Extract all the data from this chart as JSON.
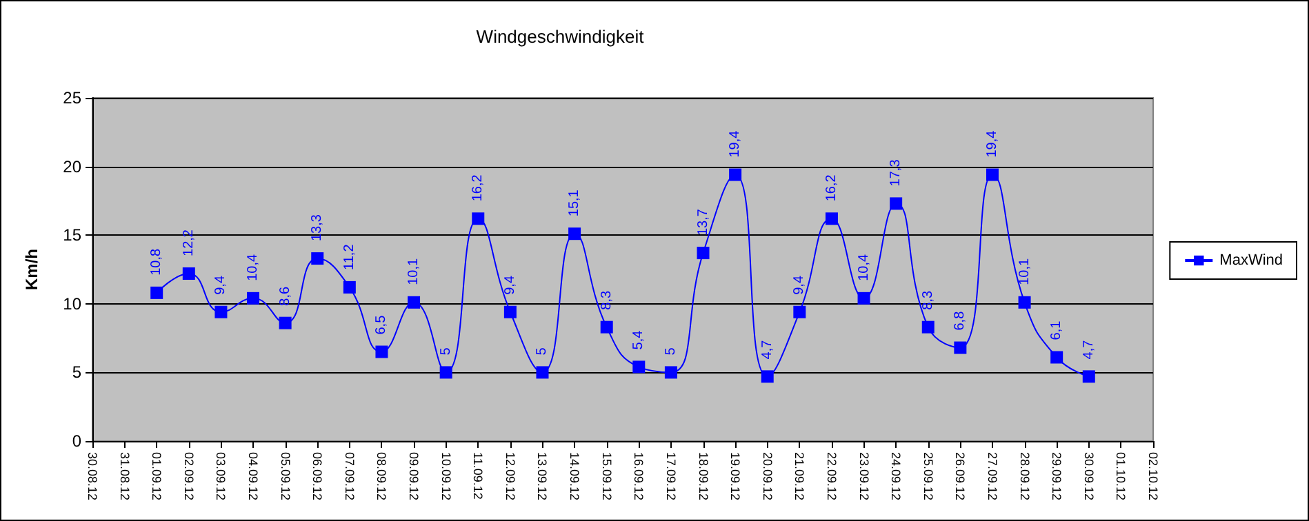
{
  "chart_data": {
    "type": "line",
    "title": "Windgeschwindigkeit",
    "ylabel": "Km/h",
    "categories": [
      "30.08.12",
      "31.08.12",
      "01.09.12",
      "02.09.12",
      "03.09.12",
      "04.09.12",
      "05.09.12",
      "06.09.12",
      "07.09.12",
      "08.09.12",
      "09.09.12",
      "10.09.12",
      "11.09.12",
      "12.09.12",
      "13.09.12",
      "14.09.12",
      "15.09.12",
      "16.09.12",
      "17.09.12",
      "18.09.12",
      "19.09.12",
      "20.09.12",
      "21.09.12",
      "22.09.12",
      "23.09.12",
      "24.09.12",
      "25.09.12",
      "26.09.12",
      "27.09.12",
      "28.09.12",
      "29.09.12",
      "30.09.12",
      "01.10.12",
      "02.10.12"
    ],
    "series": [
      {
        "name": "MaxWind",
        "color": "#0000ff",
        "values": [
          null,
          null,
          10.8,
          12.2,
          9.4,
          10.4,
          8.6,
          13.3,
          11.2,
          6.5,
          10.1,
          5,
          16.2,
          9.4,
          5,
          15.1,
          8.3,
          5.4,
          5,
          13.7,
          19.4,
          4.7,
          9.4,
          16.2,
          10.4,
          17.3,
          8.3,
          6.8,
          19.4,
          10.1,
          6.1,
          4.7,
          null,
          null
        ],
        "value_labels": [
          null,
          null,
          "10,8",
          "12,2",
          "9,4",
          "10,4",
          "8,6",
          "13,3",
          "11,2",
          "6,5",
          "10,1",
          "5",
          "16,2",
          "9,4",
          "5",
          "15,1",
          "8,3",
          "5,4",
          "5",
          "13,7",
          "19,4",
          "4,7",
          "9,4",
          "16,2",
          "10,4",
          "17,3",
          "8,3",
          "6,8",
          "19,4",
          "10,1",
          "6,1",
          "4,7",
          null,
          null
        ]
      }
    ],
    "ylim": [
      0,
      25
    ],
    "yticks": [
      0,
      5,
      10,
      15,
      20,
      25
    ],
    "grid": "y",
    "legend": "right",
    "marker": "square",
    "line_style": "solid"
  }
}
